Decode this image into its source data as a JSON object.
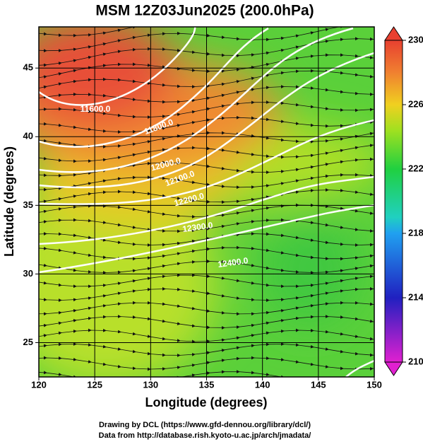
{
  "title": "MSM 12Z03Jun2025 (200.0hPa)",
  "x_axis": {
    "label": "Longitude (degrees)",
    "lim": [
      120,
      150
    ],
    "ticks": [
      120,
      125,
      130,
      135,
      140,
      145,
      150
    ]
  },
  "y_axis": {
    "label": "Latitude  (degrees)",
    "lim": [
      22.5,
      48
    ],
    "ticks": [
      25,
      30,
      35,
      40,
      45
    ]
  },
  "colorbar": {
    "lim": [
      210,
      230
    ],
    "ticks": [
      230,
      226,
      222,
      218,
      214,
      210
    ]
  },
  "contour_labels": [
    "11600.0",
    "11800.0",
    "12000.0",
    "12100.0",
    "12200.0",
    "12300.0",
    "12400.0"
  ],
  "footer": [
    "Drawing by DCL (https://www.gfd-dennou.org/library/dcl/)",
    "Data from http://database.rish.kyoto-u.ac.jp/arch/jmadata/"
  ]
}
